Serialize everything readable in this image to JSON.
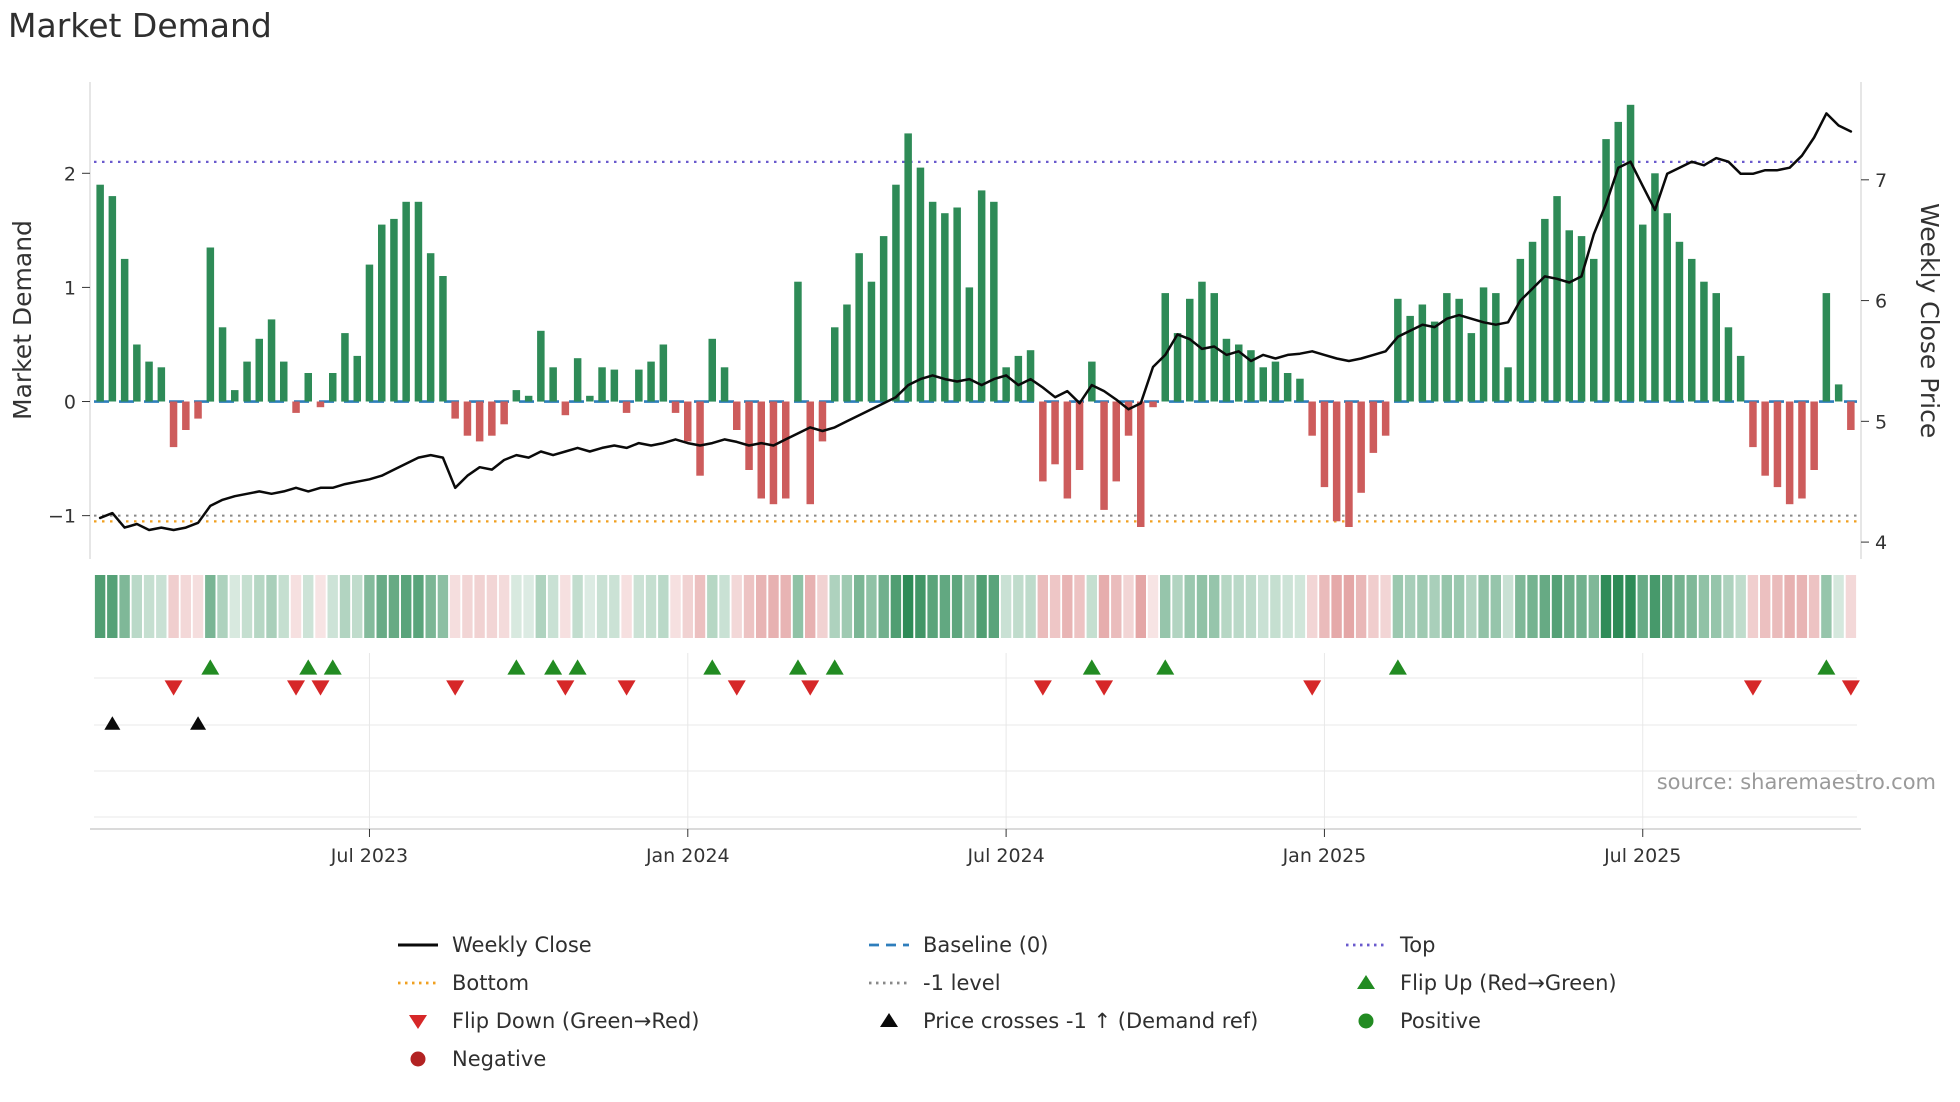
{
  "title": "Market Demand",
  "y_left_label": "Market Demand",
  "y_right_label": "Weekly Close Price",
  "source": "source: sharemaestro.com",
  "colors": {
    "positive_bar": "#2e8b57",
    "negative_bar": "#cd5c5c",
    "price_line": "#0a0a0a",
    "baseline": "#2e7ebc",
    "top": "#6a5acd",
    "bottom": "#f0a020",
    "minus_one": "#888888",
    "flip_up": "#228b22",
    "flip_down": "#d62728",
    "price_cross": "#0a0a0a",
    "positive_dot": "#228b22",
    "negative_dot": "#b22222",
    "grid": "#e8e8e8",
    "axis": "#b5b5b5",
    "tick_text": "#333333"
  },
  "chart_data": {
    "type": "bar",
    "title": "Market Demand",
    "x_unit": "week",
    "x_ticks": [
      {
        "week": 22,
        "label": "Jul 2023"
      },
      {
        "week": 48,
        "label": "Jan 2024"
      },
      {
        "week": 74,
        "label": "Jul 2024"
      },
      {
        "week": 100,
        "label": "Jan 2025"
      },
      {
        "week": 126,
        "label": "Jul 2025"
      }
    ],
    "left_axis": {
      "label": "Market Demand",
      "range": [
        -1.38,
        2.8
      ],
      "ticks": [
        {
          "value": 2,
          "label": "2"
        },
        {
          "value": 1,
          "label": "1"
        },
        {
          "value": 0,
          "label": "0"
        },
        {
          "value": -1,
          "label": "−1"
        }
      ]
    },
    "right_axis": {
      "label": "Weekly Close Price",
      "range": [
        3.86,
        7.81
      ],
      "ticks": [
        {
          "value": 7,
          "label": "7"
        },
        {
          "value": 6,
          "label": "6"
        },
        {
          "value": 5,
          "label": "5"
        },
        {
          "value": 4,
          "label": "4"
        }
      ]
    },
    "reference_lines": {
      "baseline": 0,
      "top": 2.1,
      "bottom": -1.05,
      "minus_one": -1
    },
    "demand_bars": [
      1.9,
      1.8,
      1.25,
      0.5,
      0.35,
      0.3,
      -0.4,
      -0.25,
      -0.15,
      1.35,
      0.65,
      0.1,
      0.35,
      0.55,
      0.72,
      0.35,
      -0.1,
      0.25,
      -0.05,
      0.25,
      0.6,
      0.4,
      1.2,
      1.55,
      1.6,
      1.75,
      1.75,
      1.3,
      1.1,
      -0.15,
      -0.3,
      -0.35,
      -0.3,
      -0.2,
      0.1,
      0.05,
      0.62,
      0.3,
      -0.12,
      0.38,
      0.05,
      0.3,
      0.28,
      -0.1,
      0.28,
      0.35,
      0.5,
      -0.1,
      -0.35,
      -0.65,
      0.55,
      0.3,
      -0.25,
      -0.6,
      -0.85,
      -0.9,
      -0.85,
      1.05,
      -0.9,
      -0.35,
      0.65,
      0.85,
      1.3,
      1.05,
      1.45,
      1.9,
      2.35,
      2.05,
      1.75,
      1.65,
      1.7,
      1.0,
      1.85,
      1.75,
      0.3,
      0.4,
      0.45,
      -0.7,
      -0.55,
      -0.85,
      -0.6,
      0.35,
      -0.95,
      -0.7,
      -0.3,
      -1.1,
      -0.05,
      0.95,
      0.6,
      0.9,
      1.05,
      0.95,
      0.55,
      0.5,
      0.45,
      0.3,
      0.35,
      0.25,
      0.2,
      -0.3,
      -0.75,
      -1.05,
      -1.1,
      -0.8,
      -0.45,
      -0.3,
      0.9,
      0.75,
      0.85,
      0.7,
      0.95,
      0.9,
      0.6,
      1.0,
      0.95,
      0.3,
      1.25,
      1.4,
      1.6,
      1.8,
      1.5,
      1.45,
      1.25,
      2.3,
      2.45,
      2.6,
      1.55,
      2.0,
      1.65,
      1.4,
      1.25,
      1.05,
      0.95,
      0.65,
      0.4,
      -0.4,
      -0.65,
      -0.75,
      -0.9,
      -0.85,
      -0.6,
      0.95,
      0.15,
      -0.25
    ],
    "weekly_close_price": [
      4.2,
      4.24,
      4.12,
      4.15,
      4.1,
      4.12,
      4.1,
      4.12,
      4.16,
      4.3,
      4.35,
      4.38,
      4.4,
      4.42,
      4.4,
      4.42,
      4.45,
      4.42,
      4.45,
      4.45,
      4.48,
      4.5,
      4.52,
      4.55,
      4.6,
      4.65,
      4.7,
      4.72,
      4.7,
      4.45,
      4.55,
      4.62,
      4.6,
      4.68,
      4.72,
      4.7,
      4.75,
      4.72,
      4.75,
      4.78,
      4.75,
      4.78,
      4.8,
      4.78,
      4.82,
      4.8,
      4.82,
      4.85,
      4.82,
      4.8,
      4.82,
      4.85,
      4.83,
      4.8,
      4.82,
      4.8,
      4.85,
      4.9,
      4.95,
      4.92,
      4.95,
      5.0,
      5.05,
      5.1,
      5.15,
      5.2,
      5.3,
      5.35,
      5.38,
      5.35,
      5.33,
      5.35,
      5.3,
      5.35,
      5.38,
      5.3,
      5.35,
      5.28,
      5.2,
      5.25,
      5.15,
      5.3,
      5.25,
      5.18,
      5.1,
      5.15,
      5.45,
      5.55,
      5.72,
      5.68,
      5.6,
      5.62,
      5.55,
      5.58,
      5.5,
      5.55,
      5.52,
      5.55,
      5.56,
      5.58,
      5.55,
      5.52,
      5.5,
      5.52,
      5.55,
      5.58,
      5.7,
      5.75,
      5.8,
      5.78,
      5.85,
      5.88,
      5.85,
      5.82,
      5.8,
      5.82,
      6.0,
      6.1,
      6.2,
      6.18,
      6.15,
      6.2,
      6.55,
      6.8,
      7.1,
      7.15,
      6.95,
      6.75,
      7.05,
      7.1,
      7.15,
      7.12,
      7.18,
      7.15,
      7.05,
      7.05,
      7.08,
      7.08,
      7.1,
      7.2,
      7.35,
      7.55,
      7.45,
      7.4
    ],
    "heatmap": "demand_sign_and_intensity_strip",
    "markers": {
      "flip_up_weeks": [
        9,
        17,
        19,
        34,
        37,
        39,
        50,
        57,
        60,
        81,
        87,
        106,
        141
      ],
      "flip_down_weeks": [
        6,
        16,
        18,
        29,
        38,
        43,
        52,
        58,
        77,
        82,
        99,
        135,
        143
      ],
      "price_cross_weeks": [
        1,
        8
      ]
    }
  },
  "legend": {
    "items": [
      {
        "label": "Weekly Close",
        "swatch": "line",
        "dash": "none",
        "color": "#0a0a0a",
        "icon": "weekly-close-line-icon"
      },
      {
        "label": "Baseline (0)",
        "swatch": "line",
        "dash": "10 7",
        "color": "#2e7ebc",
        "icon": "baseline-dash-icon"
      },
      {
        "label": "Top",
        "swatch": "line",
        "dash": "2.5 4.5",
        "color": "#6a5acd",
        "icon": "top-dotted-icon"
      },
      {
        "label": "Bottom",
        "swatch": "line",
        "dash": "2.5 4.5",
        "color": "#f0a020",
        "icon": "bottom-dotted-icon"
      },
      {
        "label": "-1 level",
        "swatch": "line",
        "dash": "2.5 4.5",
        "color": "#888888",
        "icon": "minus-one-dotted-icon"
      },
      {
        "label": "Flip Up (Red→Green)",
        "swatch": "triangle-up",
        "color": "#228b22",
        "icon": "flip-up-icon"
      },
      {
        "label": "Flip Down (Green→Red)",
        "swatch": "triangle-down",
        "color": "#d62728",
        "icon": "flip-down-icon"
      },
      {
        "label": "Price crosses -1 ↑ (Demand ref)",
        "swatch": "triangle-up",
        "color": "#0a0a0a",
        "icon": "price-cross-icon"
      },
      {
        "label": "Positive",
        "swatch": "circle",
        "color": "#228b22",
        "icon": "positive-dot-icon"
      },
      {
        "label": "Negative",
        "swatch": "circle",
        "color": "#b22222",
        "icon": "negative-dot-icon"
      }
    ]
  }
}
